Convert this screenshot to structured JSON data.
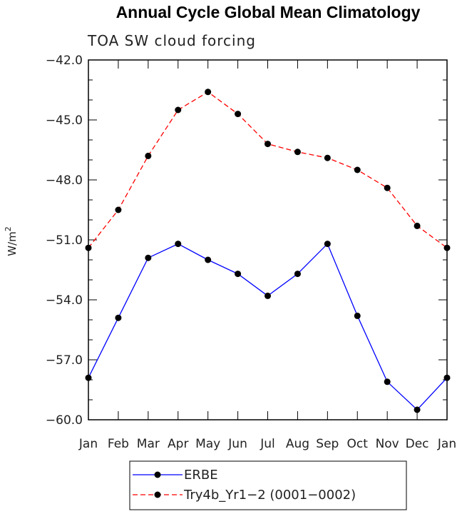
{
  "chart_data": {
    "type": "line",
    "title": "Annual Cycle Global Mean Climatology",
    "subtitle": "TOA SW cloud forcing",
    "ylabel": "W/m",
    "ylabel_superscript": "2",
    "xlabel": "",
    "categories": [
      "Jan",
      "Feb",
      "Mar",
      "Apr",
      "May",
      "Jun",
      "Jul",
      "Aug",
      "Sep",
      "Oct",
      "Nov",
      "Dec",
      "Jan"
    ],
    "ylim": [
      -60.0,
      -42.0
    ],
    "yticks": [
      -60.0,
      -57.0,
      -54.0,
      -51.0,
      -48.0,
      -45.0,
      -42.0
    ],
    "ytick_labels": [
      "−60.0",
      "−57.0",
      "−54.0",
      "−51.0",
      "−48.0",
      "−45.0",
      "−42.0"
    ],
    "series": [
      {
        "name": "ERBE",
        "color": "#0000ff",
        "dash": "solid",
        "values": [
          -57.9,
          -54.9,
          -51.9,
          -51.2,
          -52.0,
          -52.7,
          -53.8,
          -52.7,
          -51.2,
          -54.8,
          -58.1,
          -59.5,
          -57.9
        ]
      },
      {
        "name": "Try4b_Yr1−2 (0001−0002)",
        "color": "#ff0000",
        "dash": "dashed",
        "values": [
          -51.4,
          -49.5,
          -46.8,
          -44.5,
          -43.6,
          -44.7,
          -46.2,
          -46.6,
          -46.9,
          -47.5,
          -48.4,
          -50.3,
          -51.4
        ]
      }
    ],
    "legend_position": "bottom-center"
  }
}
